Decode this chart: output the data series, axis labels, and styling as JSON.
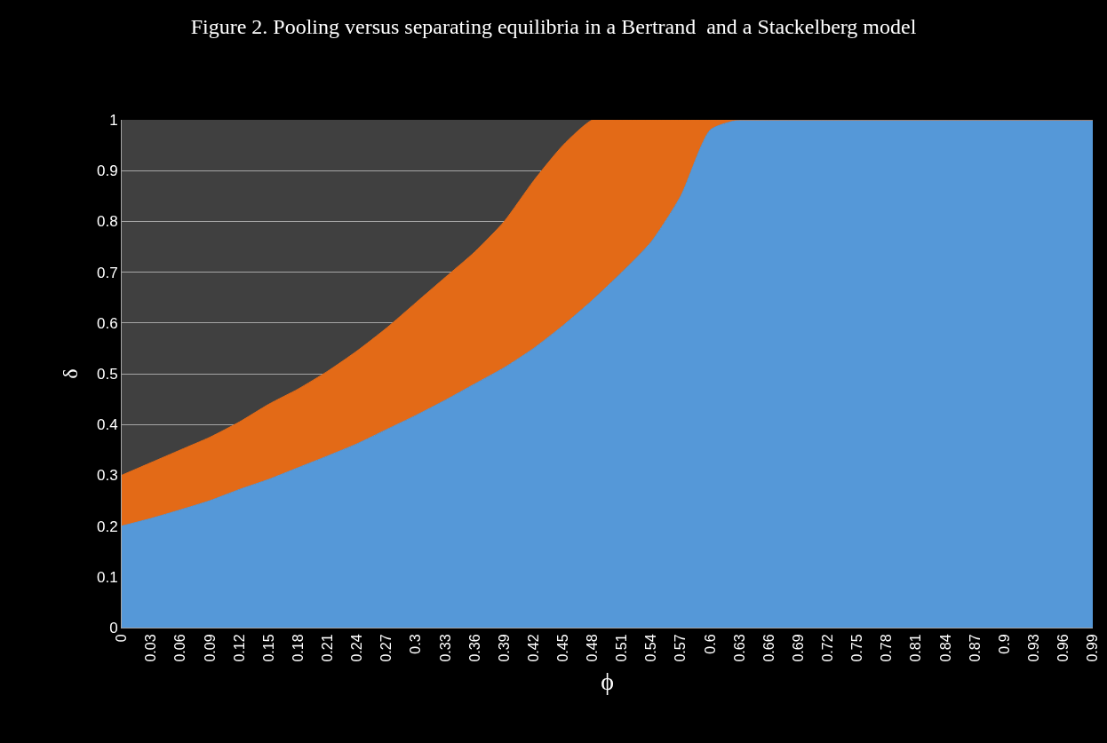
{
  "chart_data": {
    "type": "area",
    "title": "Figure 2. Pooling versus separating equilibria in a Bertrand  and a Stackelberg model",
    "xlabel": "ϕ",
    "ylabel": "δ",
    "x": [
      0,
      0.03,
      0.06,
      0.09,
      0.12,
      0.15,
      0.18,
      0.21,
      0.24,
      0.27,
      0.3,
      0.33,
      0.36,
      0.39,
      0.42,
      0.45,
      0.48,
      0.51,
      0.54,
      0.57,
      0.6,
      0.63,
      0.66,
      0.69,
      0.72,
      0.75,
      0.78,
      0.81,
      0.84,
      0.87,
      0.9,
      0.93,
      0.96,
      0.99
    ],
    "stacked": true,
    "series": [
      {
        "color": "#5598d8",
        "values": [
          0.2,
          0.215,
          0.232,
          0.25,
          0.272,
          0.292,
          0.315,
          0.338,
          0.362,
          0.39,
          0.418,
          0.448,
          0.48,
          0.512,
          0.55,
          0.595,
          0.645,
          0.7,
          0.76,
          0.85,
          0.98,
          1,
          1,
          1,
          1,
          1,
          1,
          1,
          1,
          1,
          1,
          1,
          1,
          1
        ]
      },
      {
        "color": "#e36a17",
        "values": [
          0.1,
          0.11,
          0.118,
          0.125,
          0.133,
          0.148,
          0.155,
          0.167,
          0.183,
          0.2,
          0.222,
          0.242,
          0.26,
          0.288,
          0.33,
          0.355,
          0.355,
          0.3,
          0.24,
          0.15,
          0.02,
          0,
          0,
          0,
          0,
          0,
          0,
          0,
          0,
          0,
          0,
          0,
          0,
          0
        ]
      }
    ],
    "xlim": [
      0,
      0.99
    ],
    "xticks": [
      0,
      0.03,
      0.06,
      0.09,
      0.12,
      0.15,
      0.18,
      0.21,
      0.24,
      0.27,
      0.3,
      0.33,
      0.36,
      0.39,
      0.42,
      0.45,
      0.48,
      0.51,
      0.54,
      0.57,
      0.6,
      0.63,
      0.66,
      0.69,
      0.72,
      0.75,
      0.78,
      0.81,
      0.84,
      0.87,
      0.9,
      0.93,
      0.96,
      0.99
    ],
    "ylim": [
      0,
      1
    ],
    "yticks": [
      0,
      0.1,
      0.2,
      0.3,
      0.4,
      0.5,
      0.6,
      0.7,
      0.8,
      0.9,
      1
    ],
    "grid": "y",
    "marker": "none",
    "line_style": "solid"
  }
}
